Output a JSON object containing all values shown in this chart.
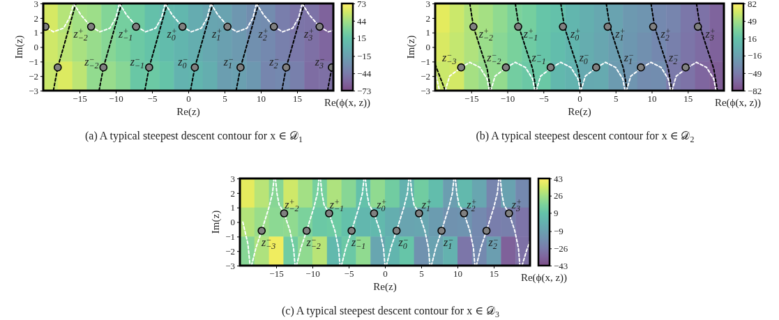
{
  "chart_data": [
    {
      "type": "heatmap",
      "title": "(a) A typical steepest descent contour for x ∈ 𝒟$_{1}$",
      "xlabel": "Re(z)",
      "ylabel": "Im(z)",
      "clabel": "Re(ϕ(x, z))",
      "cells": [
        [
          60,
          50,
          44,
          42,
          32,
          26,
          23,
          13,
          7,
          5,
          -5,
          -11,
          -13,
          -23,
          -30,
          -32,
          -42,
          -48,
          -50,
          -60
        ],
        [
          58,
          52,
          46,
          40,
          34,
          28,
          21,
          15,
          9,
          3,
          -3,
          -9,
          -15,
          -21,
          -28,
          -34,
          -40,
          -46,
          -52,
          -58
        ],
        [
          56,
          62,
          52,
          38,
          40,
          34,
          19,
          21,
          15,
          1,
          3,
          -3,
          -17,
          -15,
          -22,
          -36,
          -34,
          -40,
          -54,
          -52
        ]
      ],
      "clim": [
        -73,
        73
      ],
      "cticks": [
        {
          "value": -73,
          "label": "−73"
        },
        {
          "value": -44,
          "label": "−44"
        },
        {
          "value": -15,
          "label": "−15"
        },
        15,
        44,
        73
      ],
      "xlim": [
        -20,
        20
      ],
      "xticks": [
        {
          "value": -15,
          "label": "−15"
        },
        {
          "value": -10,
          "label": "−10"
        },
        {
          "value": -5,
          "label": "−5"
        },
        0,
        5,
        10,
        15
      ],
      "ylim": [
        -3,
        3
      ],
      "yticks": [
        {
          "value": -3,
          "label": "−3"
        },
        {
          "value": -2,
          "label": "−2"
        },
        {
          "value": -1,
          "label": "−1"
        },
        0,
        1,
        2,
        3
      ],
      "line_style": "dashed",
      "series": [
        {
          "type": "line",
          "color": "#000000",
          "x": [
            -18.6,
            -18.0,
            -17.2,
            -15.5
          ],
          "values": [
            -3,
            -1.4,
            0,
            3
          ]
        },
        {
          "type": "line",
          "color": "#000000",
          "x": [
            -12.3,
            -11.7,
            -10.9,
            -9.2
          ],
          "values": [
            -3,
            -1.4,
            0,
            3
          ]
        },
        {
          "type": "line",
          "color": "#000000",
          "x": [
            -6.0,
            -5.4,
            -4.6,
            -2.9
          ],
          "values": [
            -3,
            -1.4,
            0,
            3
          ]
        },
        {
          "type": "line",
          "color": "#000000",
          "x": [
            0.3,
            0.9,
            1.7,
            3.4
          ],
          "values": [
            -3,
            -1.4,
            0,
            3
          ]
        },
        {
          "type": "line",
          "color": "#000000",
          "x": [
            6.6,
            7.2,
            8.0,
            9.7
          ],
          "values": [
            -3,
            -1.4,
            0,
            3
          ]
        },
        {
          "type": "line",
          "color": "#000000",
          "x": [
            12.9,
            13.5,
            14.3,
            16.0
          ],
          "values": [
            -3,
            -1.4,
            0,
            3
          ]
        },
        {
          "type": "line",
          "color": "#000000",
          "x": [
            19.2,
            19.8,
            20
          ],
          "values": [
            -3,
            -1.4,
            -1.05
          ]
        },
        {
          "type": "line",
          "color": "#ffffff",
          "x": [
            -20,
            -19.7,
            -18.6,
            -17.2,
            -16.4,
            -15.8
          ],
          "values": [
            1.5,
            1.4,
            1.05,
            1.3,
            2,
            3
          ]
        },
        {
          "type": "line",
          "color": "#ffffff",
          "x": [
            -15.8,
            -14.8,
            -13.4,
            -12.2,
            -10.8,
            -10.0,
            -9.5
          ],
          "values": [
            3,
            2.2,
            1.4,
            1.05,
            1.3,
            2,
            3
          ]
        },
        {
          "type": "line",
          "color": "#ffffff",
          "x": [
            -9.5,
            -8.5,
            -7.1,
            -5.9,
            -4.5,
            -3.7,
            -3.2
          ],
          "values": [
            3,
            2.2,
            1.4,
            1.05,
            1.3,
            2,
            3
          ]
        },
        {
          "type": "line",
          "color": "#ffffff",
          "x": [
            -3.2,
            -2.2,
            -0.8,
            0.4,
            1.8,
            2.6,
            3.1
          ],
          "values": [
            3,
            2.2,
            1.4,
            1.05,
            1.3,
            2,
            3
          ]
        },
        {
          "type": "line",
          "color": "#ffffff",
          "x": [
            3.1,
            4.1,
            5.5,
            6.7,
            8.1,
            8.9,
            9.4
          ],
          "values": [
            3,
            2.2,
            1.4,
            1.05,
            1.3,
            2,
            3
          ]
        },
        {
          "type": "line",
          "color": "#ffffff",
          "x": [
            9.4,
            10.4,
            11.8,
            13.0,
            14.4,
            15.2,
            15.7
          ],
          "values": [
            3,
            2.2,
            1.4,
            1.05,
            1.3,
            2,
            3
          ]
        },
        {
          "type": "line",
          "color": "#ffffff",
          "x": [
            15.7,
            16.7,
            18.1,
            19.3,
            20
          ],
          "values": [
            3,
            2.2,
            1.4,
            1.05,
            1.15
          ]
        },
        {
          "type": "scatter",
          "marker": "circle",
          "color": "#808080",
          "x": [
            -19.7,
            -13.4,
            -7.2,
            -0.8,
            5.4,
            11.8,
            18.1
          ],
          "values": [
            1.4,
            1.4,
            1.4,
            1.4,
            1.4,
            1.4,
            1.4
          ]
        },
        {
          "type": "scatter",
          "marker": "circle",
          "color": "#808080",
          "x": [
            -18.0,
            -11.7,
            -5.4,
            0.9,
            7.2,
            13.5,
            19.8
          ],
          "values": [
            -1.4,
            -1.4,
            -1.4,
            -1.4,
            -1.4,
            -1.4,
            -1.4
          ]
        }
      ],
      "annotations": [
        {
          "text": "z$^{+}$$_{−2}$",
          "x": -13.4,
          "y": 1.4
        },
        {
          "text": "z$^{+}$$_{−1}$",
          "x": -7.2,
          "y": 1.4
        },
        {
          "text": "z$^{+}$$_{0}$",
          "x": -0.8,
          "y": 1.4
        },
        {
          "text": "z$^{+}$$_{1}$",
          "x": 5.4,
          "y": 1.4
        },
        {
          "text": "z$^{+}$$_{2}$",
          "x": 11.8,
          "y": 1.4
        },
        {
          "text": "z$^{+}$$_{3}$",
          "x": 18.1,
          "y": 1.4
        },
        {
          "text": "z$^{−}$$_{−2}$",
          "x": -11.7,
          "y": -1.4
        },
        {
          "text": "z$^{−}$$_{−1}$",
          "x": -5.4,
          "y": -1.4
        },
        {
          "text": "z$^{−}$$_{0}$",
          "x": 0.9,
          "y": -1.4
        },
        {
          "text": "z$^{−}$$_{1}$",
          "x": 7.2,
          "y": -1.4
        },
        {
          "text": "z$^{−}$$_{2}$",
          "x": 13.5,
          "y": -1.4
        },
        {
          "text": "z$^{−}$$_{3}$",
          "x": 19.8,
          "y": -1.4
        }
      ]
    },
    {
      "type": "heatmap",
      "title": "(b) A typical steepest descent contour for x ∈ 𝒟$_{2}$",
      "xlabel": "Re(z)",
      "ylabel": "Im(z)",
      "clabel": "Re(ϕ(x, z))",
      "cells": [
        [
          72,
          64,
          55,
          50,
          42,
          33,
          29,
          19,
          15,
          5,
          -3,
          -10,
          -14,
          -24,
          -28,
          -38,
          -42,
          -53,
          -57,
          -67
        ],
        [
          68,
          61,
          54,
          46,
          39,
          32,
          25,
          18,
          11,
          4,
          -4,
          -11,
          -18,
          -25,
          -32,
          -39,
          -46,
          -54,
          -61,
          -68
        ],
        [
          64,
          66,
          50,
          44,
          43,
          28,
          23,
          22,
          7,
          2,
          -8,
          -7,
          -22,
          -27,
          -36,
          -35,
          -50,
          -56,
          -65,
          -72
        ]
      ],
      "clim": [
        -82,
        82
      ],
      "cticks": [
        {
          "value": -82,
          "label": "−82"
        },
        {
          "value": -49,
          "label": "−49"
        },
        {
          "value": -16,
          "label": "−16"
        },
        16,
        49,
        82
      ],
      "xlim": [
        -20,
        20
      ],
      "xticks": [
        {
          "value": -15,
          "label": "−15"
        },
        {
          "value": -10,
          "label": "−10"
        },
        {
          "value": -5,
          "label": "−5"
        },
        0,
        5,
        10,
        15
      ],
      "ylim": [
        -3,
        3
      ],
      "yticks": [
        {
          "value": -3,
          "label": "−3"
        },
        {
          "value": -2,
          "label": "−2"
        },
        {
          "value": -1,
          "label": "−1"
        },
        0,
        1,
        2,
        3
      ],
      "line_style": "dashed",
      "series": [
        {
          "type": "line",
          "color": "#000000",
          "x": [
            -20,
            -19.3,
            -18.6
          ],
          "values": [
            -1.2,
            -2.1,
            -3
          ]
        },
        {
          "type": "line",
          "color": "#000000",
          "x": [
            -15.2,
            -14.7,
            -13.8,
            -12.8,
            -12.3
          ],
          "values": [
            3,
            1.4,
            0,
            -1.5,
            -3
          ]
        },
        {
          "type": "line",
          "color": "#000000",
          "x": [
            -8.9,
            -8.4,
            -7.5,
            -6.5,
            -6.0
          ],
          "values": [
            3,
            1.4,
            0,
            -1.5,
            -3
          ]
        },
        {
          "type": "line",
          "color": "#000000",
          "x": [
            -2.6,
            -2.1,
            -1.2,
            -0.2,
            0.3
          ],
          "values": [
            3,
            1.4,
            0,
            -1.5,
            -3
          ]
        },
        {
          "type": "line",
          "color": "#000000",
          "x": [
            3.7,
            4.2,
            5.1,
            6.1,
            6.6
          ],
          "values": [
            3,
            1.4,
            0,
            -1.5,
            -3
          ]
        },
        {
          "type": "line",
          "color": "#000000",
          "x": [
            9.9,
            10.4,
            11.3,
            12.3,
            12.8
          ],
          "values": [
            3,
            1.4,
            0,
            -1.5,
            -3
          ]
        },
        {
          "type": "line",
          "color": "#000000",
          "x": [
            16.2,
            16.7,
            17.6,
            18.6,
            19.1
          ],
          "values": [
            3,
            1.4,
            0,
            -1.5,
            -3
          ]
        },
        {
          "type": "line",
          "color": "#ffffff",
          "x": [
            -20,
            -19.4
          ],
          "values": [
            -1.7,
            -3
          ]
        },
        {
          "type": "line",
          "color": "#ffffff",
          "x": [
            -18.6,
            -18.0,
            -16.4,
            -15.2,
            -13.8,
            -12.8,
            -12.5
          ],
          "values": [
            -3,
            -2,
            -1.4,
            -1.05,
            -1.4,
            -2.2,
            -3
          ]
        },
        {
          "type": "line",
          "color": "#ffffff",
          "x": [
            -12.3,
            -11.7,
            -10.1,
            -8.9,
            -7.5,
            -6.5,
            -6.2
          ],
          "values": [
            -3,
            -2,
            -1.4,
            -1.05,
            -1.4,
            -2.2,
            -3
          ]
        },
        {
          "type": "line",
          "color": "#ffffff",
          "x": [
            -6.0,
            -5.4,
            -3.8,
            -2.6,
            -1.2,
            -0.2,
            0.1
          ],
          "values": [
            -3,
            -2,
            -1.4,
            -1.05,
            -1.4,
            -2.2,
            -3
          ]
        },
        {
          "type": "line",
          "color": "#ffffff",
          "x": [
            0.2,
            0.8,
            2.4,
            3.6,
            5.0,
            6.0,
            6.3
          ],
          "values": [
            -3,
            -2,
            -1.4,
            -1.05,
            -1.4,
            -2.2,
            -3
          ]
        },
        {
          "type": "line",
          "color": "#ffffff",
          "x": [
            6.5,
            7.1,
            8.7,
            9.9,
            11.3,
            12.3,
            12.6
          ],
          "values": [
            -3,
            -2,
            -1.4,
            -1.05,
            -1.4,
            -2.2,
            -3
          ]
        },
        {
          "type": "line",
          "color": "#ffffff",
          "x": [
            12.8,
            13.4,
            15.0,
            16.2,
            17.6,
            18.6,
            18.9
          ],
          "values": [
            -3,
            -2,
            -1.4,
            -1.05,
            -1.4,
            -2.2,
            -3
          ]
        },
        {
          "type": "scatter",
          "marker": "circle",
          "color": "#808080",
          "x": [
            -14.7,
            -8.5,
            -2.3,
            3.9,
            10.2,
            16.4
          ],
          "values": [
            1.4,
            1.4,
            1.4,
            1.4,
            1.4,
            1.4
          ]
        },
        {
          "type": "scatter",
          "marker": "circle",
          "color": "#808080",
          "x": [
            -16.4,
            -10.2,
            -4.0,
            2.3,
            8.5,
            14.7
          ],
          "values": [
            -1.4,
            -1.4,
            -1.4,
            -1.4,
            -1.4,
            -1.4
          ]
        }
      ],
      "annotations": [
        {
          "text": "z$^{+}$$_{−2}$",
          "x": -14.7,
          "y": 1.4
        },
        {
          "text": "z$^{+}$$_{−1}$",
          "x": -8.5,
          "y": 1.4
        },
        {
          "text": "z$^{+}$$_{0}$",
          "x": -2.3,
          "y": 1.4
        },
        {
          "text": "z$^{+}$$_{1}$",
          "x": 3.9,
          "y": 1.4
        },
        {
          "text": "z$^{+}$$_{2}$",
          "x": 10.2,
          "y": 1.4
        },
        {
          "text": "z$^{+}$$_{3}$",
          "x": 16.4,
          "y": 1.4
        },
        {
          "text": "z$^{−}$$_{−3}$",
          "x": -16.4,
          "y": -1.4
        },
        {
          "text": "z$^{−}$$_{−2}$",
          "x": -10.2,
          "y": -1.4
        },
        {
          "text": "z$^{−}$$_{−1}$",
          "x": -4.0,
          "y": -1.4
        },
        {
          "text": "z$^{−}$$_{0}$",
          "x": 2.3,
          "y": -1.4
        },
        {
          "text": "z$^{−}$$_{1}$",
          "x": 8.5,
          "y": -1.4
        },
        {
          "text": "z$^{−}$$_{2}$",
          "x": 14.7,
          "y": -1.4
        }
      ]
    },
    {
      "type": "heatmap",
      "title": "(c) A typical steepest descent contour for x ∈ 𝒟$_{3}$",
      "xlabel": "Re(z)",
      "ylabel": "Im(z)",
      "clabel": "Re(ϕ(x, z))",
      "cells": [
        [
          38,
          30,
          20,
          34,
          26,
          16,
          28,
          20,
          8,
          22,
          14,
          0,
          14,
          6,
          -10,
          4,
          -6,
          -22,
          -8,
          -20
        ],
        [
          29,
          24,
          21,
          22,
          17,
          12,
          13,
          8,
          3,
          4,
          -2,
          -7,
          -6,
          -11,
          -16,
          -15,
          -20,
          -25,
          -24,
          -29
        ],
        [
          20,
          28,
          40,
          14,
          22,
          30,
          4,
          12,
          22,
          -6,
          2,
          10,
          -16,
          -8,
          0,
          -28,
          -20,
          -10,
          -36,
          -30
        ]
      ],
      "clim": [
        -43,
        43
      ],
      "cticks": [
        {
          "value": -43,
          "label": "−43"
        },
        {
          "value": -26,
          "label": "−26"
        },
        {
          "value": -9,
          "label": "−9"
        },
        9,
        26,
        43
      ],
      "xlim": [
        -20,
        20
      ],
      "xticks": [
        {
          "value": -15,
          "label": "−15"
        },
        {
          "value": -10,
          "label": "−10"
        },
        {
          "value": -5,
          "label": "−5"
        },
        0,
        5,
        10,
        15
      ],
      "ylim": [
        -3,
        3
      ],
      "yticks": [
        {
          "value": -3,
          "label": "−3"
        },
        {
          "value": -2,
          "label": "−2"
        },
        {
          "value": -1,
          "label": "−1"
        },
        0,
        1,
        2,
        3
      ],
      "line_style": "dashed",
      "series": [
        {
          "type": "line",
          "color": "#ffffff",
          "x": [
            -19.6,
            -18.9,
            -18.6
          ],
          "values": [
            0,
            -1.5,
            -3
          ]
        },
        {
          "type": "line",
          "color": "#ffffff",
          "x": [
            -18.4,
            -17.8,
            -17.0,
            -16.0,
            -15.5,
            -15.3
          ],
          "values": [
            -3,
            -1.8,
            -0.6,
            1,
            2,
            3
          ]
        },
        {
          "type": "line",
          "color": "#ffffff",
          "x": [
            -15.1,
            -14.9,
            -14.6,
            -13.9,
            -13.1,
            -12.6,
            -12.4
          ],
          "values": [
            3,
            2,
            1.2,
            0.6,
            -0.6,
            -1.8,
            -3
          ]
        },
        {
          "type": "line",
          "color": "#ffffff",
          "x": [
            -12.2,
            -11.6,
            -10.8,
            -9.8,
            -9.3,
            -9.1
          ],
          "values": [
            -3,
            -1.8,
            -0.6,
            1,
            2,
            3
          ]
        },
        {
          "type": "line",
          "color": "#ffffff",
          "x": [
            -8.9,
            -8.7,
            -8.4,
            -7.7,
            -6.9,
            -6.4,
            -6.2
          ],
          "values": [
            3,
            2,
            1.2,
            0.6,
            -0.6,
            -1.8,
            -3
          ]
        },
        {
          "type": "line",
          "color": "#ffffff",
          "x": [
            -6.0,
            -5.4,
            -4.6,
            -3.6,
            -3.1,
            -2.9
          ],
          "values": [
            -3,
            -1.8,
            -0.6,
            1,
            2,
            3
          ]
        },
        {
          "type": "line",
          "color": "#ffffff",
          "x": [
            -2.7,
            -2.5,
            -2.2,
            -1.5,
            -0.7,
            -0.2,
            0.0
          ],
          "values": [
            3,
            2,
            1.2,
            0.6,
            -0.6,
            -1.8,
            -3
          ]
        },
        {
          "type": "line",
          "color": "#ffffff",
          "x": [
            0.2,
            0.8,
            1.6,
            2.6,
            3.1,
            3.3
          ],
          "values": [
            -3,
            -1.8,
            -0.6,
            1,
            2,
            3
          ]
        },
        {
          "type": "line",
          "color": "#ffffff",
          "x": [
            3.5,
            3.7,
            4.0,
            4.7,
            5.5,
            6.0,
            6.2
          ],
          "values": [
            3,
            2,
            1.2,
            0.6,
            -0.6,
            -1.8,
            -3
          ]
        },
        {
          "type": "line",
          "color": "#ffffff",
          "x": [
            6.4,
            7.0,
            7.8,
            8.8,
            9.3,
            9.5
          ],
          "values": [
            -3,
            -1.8,
            -0.6,
            1,
            2,
            3
          ]
        },
        {
          "type": "line",
          "color": "#ffffff",
          "x": [
            9.7,
            9.9,
            10.2,
            10.9,
            11.7,
            12.2,
            12.4
          ],
          "values": [
            3,
            2,
            1.2,
            0.6,
            -0.6,
            -1.8,
            -3
          ]
        },
        {
          "type": "line",
          "color": "#ffffff",
          "x": [
            12.6,
            13.2,
            14.0,
            15.0,
            15.5,
            15.7
          ],
          "values": [
            -3,
            -1.8,
            -0.6,
            1,
            2,
            3
          ]
        },
        {
          "type": "line",
          "color": "#ffffff",
          "x": [
            15.9,
            16.1,
            16.4,
            17.1,
            17.9,
            18.4,
            18.6
          ],
          "values": [
            3,
            2,
            1.2,
            0.6,
            -0.6,
            -1.8,
            -3
          ]
        },
        {
          "type": "line",
          "color": "#ffffff",
          "x": [
            18.9,
            19.5,
            20
          ],
          "values": [
            -3,
            -2,
            -1.3
          ]
        },
        {
          "type": "scatter",
          "marker": "circle",
          "color": "#808080",
          "x": [
            -13.9,
            -7.7,
            -1.5,
            4.7,
            10.9,
            17.1
          ],
          "values": [
            0.6,
            0.6,
            0.6,
            0.6,
            0.6,
            0.6
          ]
        },
        {
          "type": "scatter",
          "marker": "circle",
          "color": "#808080",
          "x": [
            -17.0,
            -10.8,
            -4.6,
            1.6,
            7.8,
            14.0
          ],
          "values": [
            -0.6,
            -0.6,
            -0.6,
            -0.6,
            -0.6,
            -0.6
          ]
        }
      ],
      "annotations": [
        {
          "text": "z$^{+}$$_{−2}$",
          "x": -13.9,
          "y": 0.6
        },
        {
          "text": "z$^{+}$$_{−1}$",
          "x": -7.7,
          "y": 0.6
        },
        {
          "text": "z$^{+}$$_{0}$",
          "x": -1.5,
          "y": 0.6
        },
        {
          "text": "z$^{+}$$_{1}$",
          "x": 4.7,
          "y": 0.6
        },
        {
          "text": "z$^{+}$$_{2}$",
          "x": 10.9,
          "y": 0.6
        },
        {
          "text": "z$^{+}$$_{3}$",
          "x": 17.1,
          "y": 0.6
        },
        {
          "text": "z$^{−}$$_{−3}$",
          "x": -17.0,
          "y": -0.6
        },
        {
          "text": "z$^{−}$$_{−2}$",
          "x": -10.8,
          "y": -0.6
        },
        {
          "text": "z$^{−}$$_{−1}$",
          "x": -4.6,
          "y": -0.6
        },
        {
          "text": "z$^{−}$$_{0}$",
          "x": 1.6,
          "y": -0.6
        },
        {
          "text": "z$^{−}$$_{1}$",
          "x": 7.8,
          "y": -0.6
        },
        {
          "text": "z$^{−}$$_{2}$",
          "x": 14.0,
          "y": -0.6
        }
      ]
    }
  ]
}
